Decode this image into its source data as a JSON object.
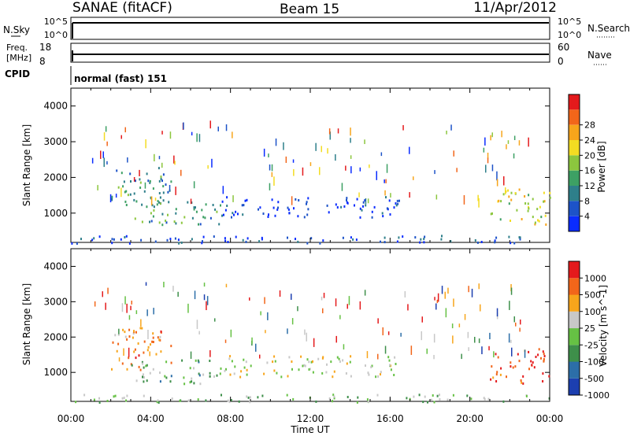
{
  "header": {
    "station": "SANAE (fitACF)",
    "beam": "Beam 15",
    "date": "11/Apr/2012"
  },
  "top_panels": {
    "nsky": {
      "label": "N.Sky",
      "ticks": [
        "10^5",
        "10^0"
      ],
      "right_label": "N.Search",
      "right_ticks": [
        "10^5",
        "10^0"
      ]
    },
    "freq": {
      "label_line1": "Freq.",
      "label_line2": "[MHz]",
      "ticks": [
        18,
        8
      ],
      "right_label": "Nave",
      "right_ticks": [
        60,
        0
      ]
    },
    "cpid": {
      "label": "CPID",
      "value": "normal (fast) 151"
    }
  },
  "time_axis": {
    "label": "Time UT",
    "ticks": [
      "00:00",
      "04:00",
      "08:00",
      "12:00",
      "16:00",
      "20:00",
      "00:00"
    ]
  },
  "chart_data": [
    {
      "type": "heatmap",
      "name": "power",
      "ylabel": "Slant Range [km]",
      "yticks": [
        1000,
        2000,
        3000,
        4000
      ],
      "ylim": [
        180,
        4500
      ],
      "xlim": [
        0,
        24
      ],
      "colorbar": {
        "label": "Power [dB]",
        "ticks": [
          4,
          8,
          12,
          16,
          20,
          24,
          28
        ],
        "colors": [
          "#0a2cff",
          "#1d53c8",
          "#2e7f8a",
          "#3da064",
          "#8cc63e",
          "#f3dc22",
          "#f7a51b",
          "#f2661a",
          "#e41a1c"
        ]
      },
      "regions": [
        {
          "t": [
            2.0,
            5.0
          ],
          "r": [
            1100,
            2300
          ],
          "level": 0.3
        },
        {
          "t": [
            3.0,
            7.5
          ],
          "r": [
            700,
            1400
          ],
          "level": 0.35
        },
        {
          "t": [
            7.5,
            16.5
          ],
          "r": [
            900,
            1500
          ],
          "level": 0.1
        },
        {
          "t": [
            21.0,
            24.0
          ],
          "r": [
            700,
            1700
          ],
          "level": 0.55
        },
        {
          "t": [
            0.0,
            24.0
          ],
          "r": [
            180,
            400
          ],
          "level": 0.15
        }
      ]
    },
    {
      "type": "heatmap",
      "name": "velocity",
      "ylabel": "Slant Range [km]",
      "yticks": [
        1000,
        2000,
        3000,
        4000
      ],
      "ylim": [
        180,
        4500
      ],
      "xlim": [
        0,
        24
      ],
      "colorbar": {
        "label": "Velocity [m s^-1]",
        "ticks": [
          1000,
          500,
          100,
          25,
          -25,
          -100,
          -500,
          -1000
        ],
        "colors": [
          "#1c3fb0",
          "#2c6ea8",
          "#3e8f4a",
          "#66c144",
          "#c8c8c8",
          "#f7a51b",
          "#f2661a",
          "#e41a1c"
        ]
      },
      "regions": [
        {
          "t": [
            2.0,
            5.0
          ],
          "r": [
            1100,
            2300
          ],
          "level": 0.75
        },
        {
          "t": [
            3.0,
            7.5
          ],
          "r": [
            700,
            1400
          ],
          "level": 0.4
        },
        {
          "t": [
            7.5,
            16.5
          ],
          "r": [
            900,
            1500
          ],
          "level": 0.55
        },
        {
          "t": [
            21.0,
            24.0
          ],
          "r": [
            700,
            1700
          ],
          "level": 0.9
        },
        {
          "t": [
            0.0,
            24.0
          ],
          "r": [
            180,
            400
          ],
          "level": 0.45
        }
      ]
    }
  ]
}
